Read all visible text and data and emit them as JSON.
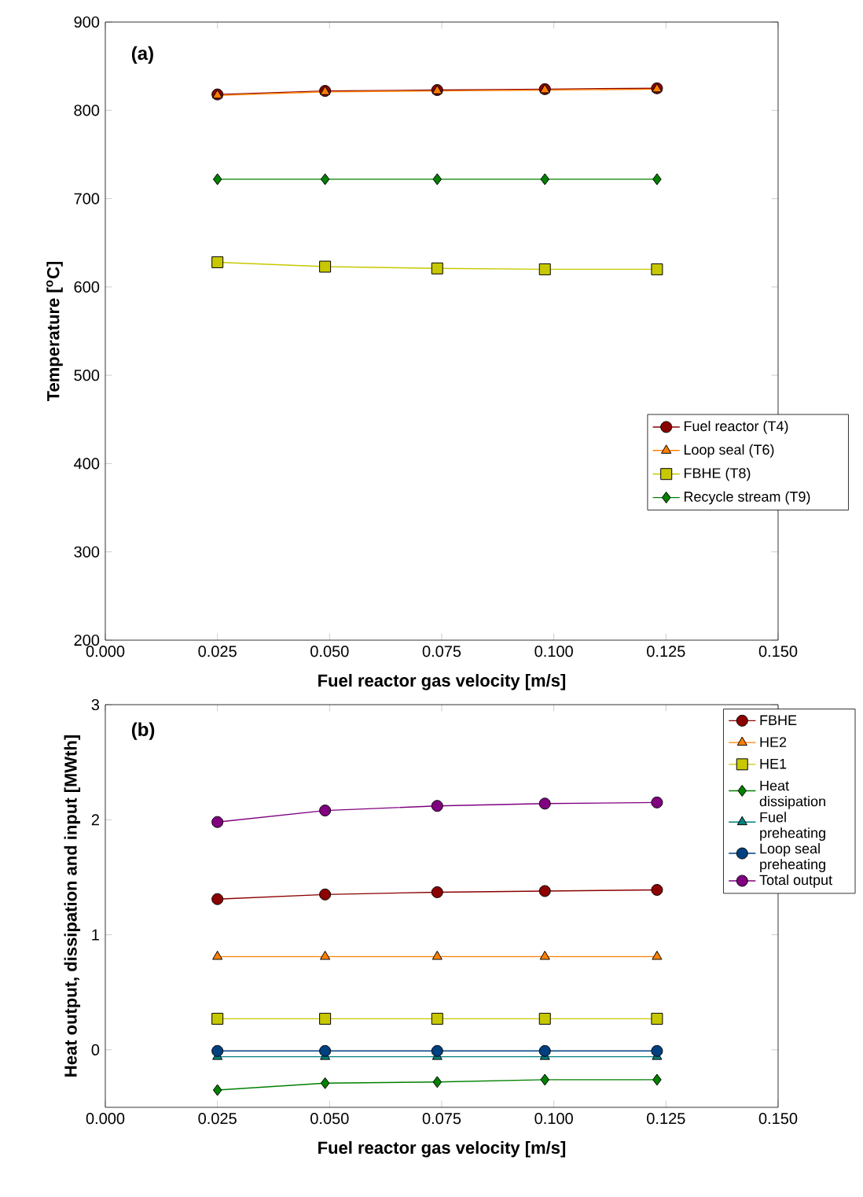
{
  "chart_data": [
    {
      "type": "line",
      "xlabel": "Fuel reactor gas velocity [m/s]",
      "ylabel": "Temperature [$^{o}$C]",
      "annotations": [
        "(a)"
      ],
      "xlim": [
        0,
        0.15
      ],
      "xticks": [
        {
          "value": 0,
          "label": "0.000"
        },
        {
          "value": 0.025,
          "label": "0.025"
        },
        {
          "value": 0.05,
          "label": "0.050"
        },
        {
          "value": 0.075,
          "label": "0.075"
        },
        {
          "value": 0.1,
          "label": "0.100"
        },
        {
          "value": 0.125,
          "label": "0.125"
        },
        {
          "value": 0.15,
          "label": "0.150"
        }
      ],
      "ylim": [
        200,
        900
      ],
      "yticks": [
        200,
        300,
        400,
        500,
        600,
        700,
        800,
        900
      ],
      "grid": false,
      "legend": "bottom right",
      "x": [
        0.025,
        0.049,
        0.074,
        0.098,
        0.123
      ],
      "series": [
        {
          "name": "Fuel reactor (T4)",
          "color": "#8b0000",
          "marker": "circle",
          "values": [
            818,
            822,
            823,
            824,
            825
          ]
        },
        {
          "name": "Loop seal (T6)",
          "color": "#ff8000",
          "marker": "triangle",
          "values": [
            817,
            821,
            822,
            823,
            824
          ]
        },
        {
          "name": "FBHE (T8)",
          "color": "#c8c800",
          "marker": "square",
          "values": [
            628,
            623,
            621,
            620,
            620
          ]
        },
        {
          "name": "Recycle stream (T9)",
          "color": "#008000",
          "marker": "diamond",
          "values": [
            722,
            722,
            722,
            722,
            722
          ]
        }
      ]
    },
    {
      "type": "line",
      "xlabel": "Fuel reactor gas velocity [m/s]",
      "ylabel": "Heat output, dissipation and input [MWth]",
      "annotations": [
        "(b)"
      ],
      "xlim": [
        0,
        0.15
      ],
      "xticks": [
        {
          "value": 0,
          "label": "0.000"
        },
        {
          "value": 0.025,
          "label": "0.025"
        },
        {
          "value": 0.05,
          "label": "0.050"
        },
        {
          "value": 0.075,
          "label": "0.075"
        },
        {
          "value": 0.1,
          "label": "0.100"
        },
        {
          "value": 0.125,
          "label": "0.125"
        },
        {
          "value": 0.15,
          "label": "0.150"
        }
      ],
      "ylim": [
        -0.5,
        3
      ],
      "yticks": [
        0,
        1,
        2,
        3
      ],
      "grid": false,
      "legend": "top right",
      "x": [
        0.025,
        0.049,
        0.074,
        0.098,
        0.123
      ],
      "series": [
        {
          "name": "FBHE",
          "color": "#8b0000",
          "marker": "circle",
          "values": [
            1.31,
            1.35,
            1.37,
            1.38,
            1.39
          ]
        },
        {
          "name": "HE2",
          "color": "#ff8000",
          "marker": "triangle",
          "values": [
            0.81,
            0.81,
            0.81,
            0.81,
            0.81
          ]
        },
        {
          "name": "HE1",
          "color": "#c8c800",
          "marker": "square",
          "values": [
            0.27,
            0.27,
            0.27,
            0.27,
            0.27
          ]
        },
        {
          "name": "Heat dissipation",
          "color": "#008000",
          "marker": "diamond",
          "values": [
            -0.35,
            -0.29,
            -0.28,
            -0.26,
            -0.26
          ]
        },
        {
          "name": "Fuel preheating",
          "color": "#008080",
          "marker": "triangle",
          "values": [
            -0.06,
            -0.06,
            -0.06,
            -0.06,
            -0.06
          ]
        },
        {
          "name": "Loop seal preheating",
          "color": "#004080",
          "marker": "circle",
          "values": [
            -0.01,
            -0.01,
            -0.01,
            -0.01,
            -0.01
          ]
        },
        {
          "name": "Total output",
          "color": "#800080",
          "marker": "circle",
          "values": [
            1.98,
            2.08,
            2.12,
            2.14,
            2.15
          ]
        }
      ]
    }
  ]
}
